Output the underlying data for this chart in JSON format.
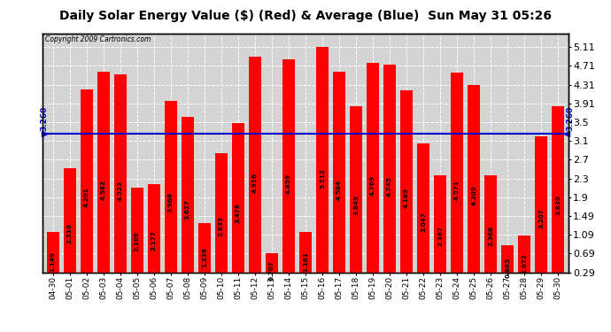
{
  "title": "Daily Solar Energy Value ($) (Red) & Average (Blue)  Sun May 31 05:26",
  "copyright": "Copyright 2009 Cartronics.com",
  "average": 3.26,
  "categories": [
    "04-30",
    "05-01",
    "05-02",
    "05-03",
    "05-04",
    "05-05",
    "05-06",
    "05-07",
    "05-08",
    "05-09",
    "05-10",
    "05-11",
    "05-12",
    "05-13",
    "05-14",
    "05-15",
    "05-16",
    "05-17",
    "05-18",
    "05-19",
    "05-20",
    "05-21",
    "05-22",
    "05-23",
    "05-24",
    "05-25",
    "05-26",
    "05-27",
    "05-28",
    "05-29",
    "05-30"
  ],
  "values": [
    1.149,
    2.51,
    4.201,
    4.582,
    4.523,
    2.109,
    2.177,
    3.966,
    3.627,
    1.339,
    2.835,
    3.478,
    4.916,
    0.707,
    4.859,
    1.161,
    5.112,
    4.584,
    3.849,
    4.769,
    4.745,
    4.189,
    3.047,
    2.367,
    4.571,
    4.309,
    2.368,
    0.865,
    1.072,
    3.207,
    3.839
  ],
  "yticks_right": [
    5.11,
    4.71,
    4.31,
    3.91,
    3.5,
    3.1,
    2.7,
    2.3,
    1.9,
    1.49,
    1.09,
    0.69,
    0.29
  ],
  "bar_color": "#ff0000",
  "avg_line_color": "#0000cc",
  "bg_color": "#ffffff",
  "plot_bg_color": "#d4d4d4",
  "grid_color": "#ffffff",
  "border_color": "#000000",
  "bar_label_color": "#000000",
  "title_fontsize": 10,
  "ylabel_right_fontsize": 8,
  "bar_label_fontsize": 5.2,
  "xlabel_fontsize": 6.5,
  "ylim_min": 0.29,
  "ylim_max": 5.41,
  "avg_label": "3.260"
}
